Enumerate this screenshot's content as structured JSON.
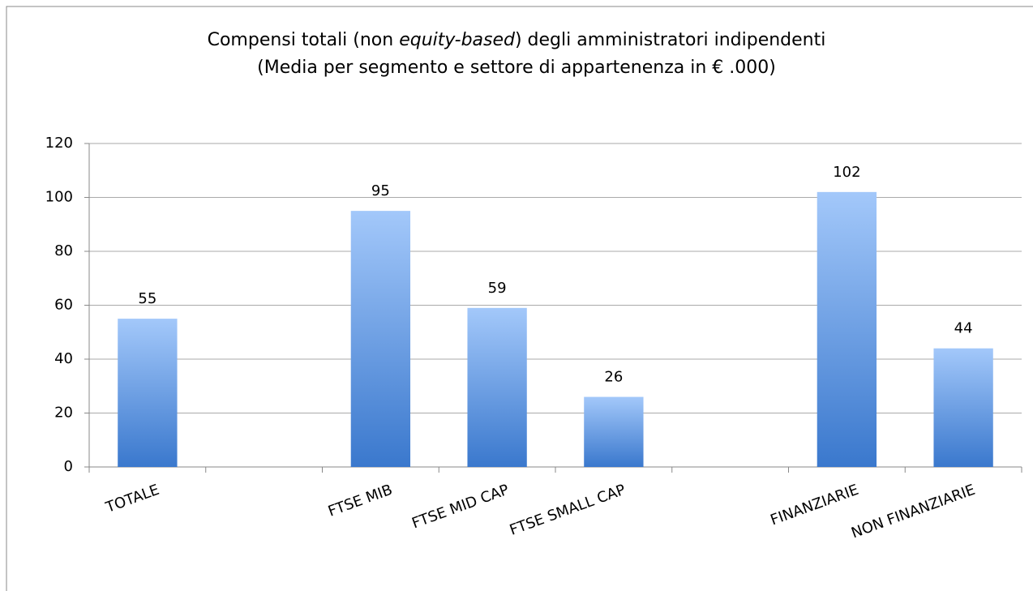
{
  "chart_data": {
    "type": "bar",
    "title": [
      "Compensi totali (non ",
      "equity-based",
      ") degli amministratori indipendenti"
    ],
    "subtitle": "(Media per segmento e settore di appartenenza in € .000)",
    "categories": [
      "TOTALE",
      null,
      "FTSE MIB",
      "FTSE MID CAP",
      "FTSE SMALL CAP",
      null,
      "FINANZIARIE",
      "NON FINANZIARIE"
    ],
    "values": [
      55,
      null,
      95,
      59,
      26,
      null,
      102,
      44
    ],
    "color": "#4a86d6",
    "ylim": [
      0,
      120
    ],
    "yticks": [
      0,
      20,
      40,
      60,
      80,
      100,
      120
    ],
    "grid": true
  }
}
